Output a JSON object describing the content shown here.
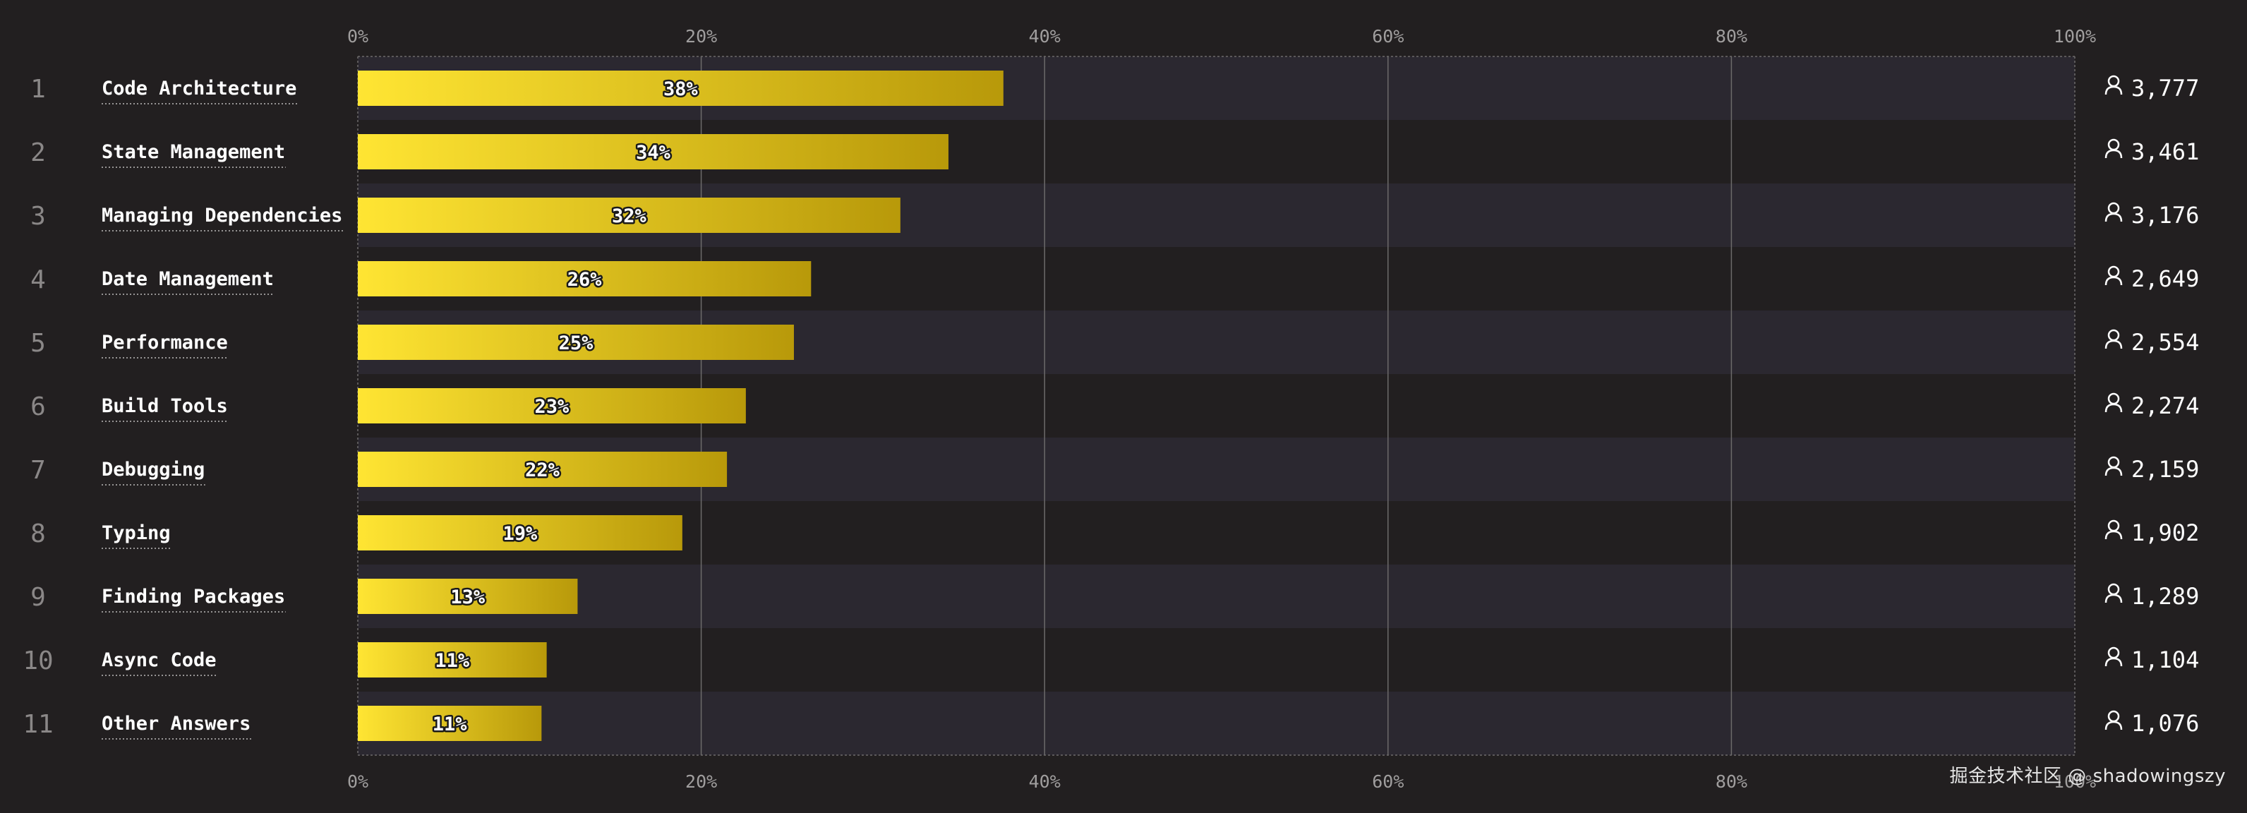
{
  "chart_data": {
    "type": "bar",
    "orientation": "horizontal",
    "axis": {
      "min": 0,
      "max": 100,
      "ticks": [
        0,
        20,
        40,
        60,
        80,
        100
      ],
      "tick_labels": [
        "0%",
        "20%",
        "40%",
        "60%",
        "80%",
        "100%"
      ],
      "positions": [
        "top",
        "bottom"
      ],
      "grid": true
    },
    "ranks": [
      "1",
      "2",
      "3",
      "4",
      "5",
      "6",
      "7",
      "8",
      "9",
      "10",
      "11"
    ],
    "categories": [
      "Code Architecture",
      "State Management",
      "Managing Dependencies",
      "Date Management",
      "Performance",
      "Build Tools",
      "Debugging",
      "Typing",
      "Finding Packages",
      "Async Code",
      "Other Answers"
    ],
    "values": [
      37.6,
      34.4,
      31.6,
      26.4,
      25.4,
      22.6,
      21.5,
      18.9,
      12.8,
      11.0,
      10.7
    ],
    "value_labels": [
      "38%",
      "34%",
      "32%",
      "26%",
      "25%",
      "23%",
      "22%",
      "19%",
      "13%",
      "11%",
      "11%"
    ],
    "counts": [
      "3,777",
      "3,461",
      "3,176",
      "2,649",
      "2,554",
      "2,274",
      "2,159",
      "1,902",
      "1,289",
      "1,104",
      "1,076"
    ],
    "count_icon": "user-icon",
    "colors": {
      "background": "#221f20",
      "row_band": "#2b2830",
      "bar_start": "#ffe533",
      "bar_end": "#b8990a",
      "label": "#ffffff",
      "rank": "#8a8787",
      "tick": "#a09e9e",
      "grid": "#6c6a6a"
    }
  },
  "watermark": "掘金技术社区 @ shadowingszy"
}
